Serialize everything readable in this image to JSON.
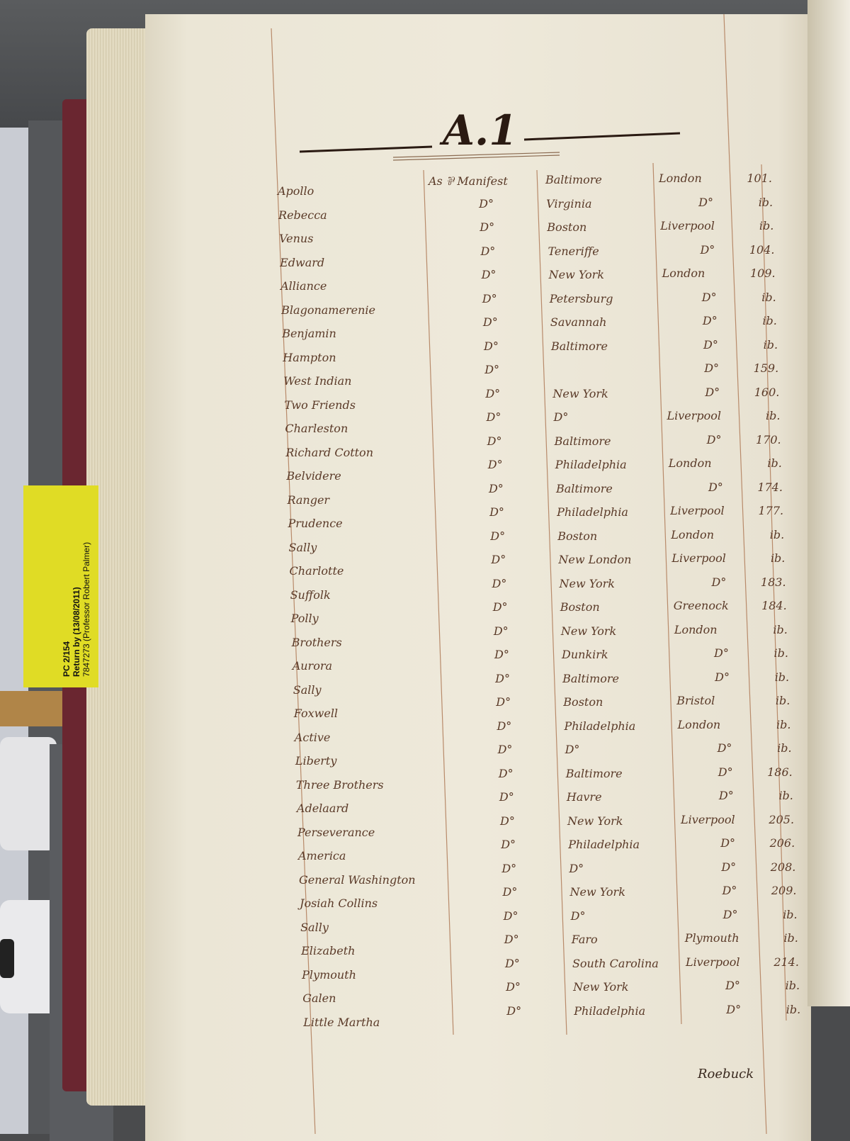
{
  "archive_label": {
    "reference": "PC 2/154",
    "return_by": "Return by (13/08/2011)",
    "reader": "7847273 (Professor Robert Palmer)"
  },
  "ledger": {
    "heading": "A.1",
    "ditto": "D°",
    "rows": [
      {
        "ship": "Apollo",
        "basis": "As ⅌ Manifest",
        "from": "Baltimore",
        "to": "London",
        "page": "101."
      },
      {
        "ship": "Rebecca",
        "basis": "D°",
        "from": "Virginia",
        "to": "D°",
        "page": "ib."
      },
      {
        "ship": "Venus",
        "basis": "D°",
        "from": "Boston",
        "to": "Liverpool",
        "page": "ib."
      },
      {
        "ship": "Edward",
        "basis": "D°",
        "from": "Teneriffe",
        "to": "D°",
        "page": "104."
      },
      {
        "ship": "Alliance",
        "basis": "D°",
        "from": "New York",
        "to": "London",
        "page": "109."
      },
      {
        "ship": "Blagonamerenie",
        "basis": "D°",
        "from": "Petersburg",
        "to": "D°",
        "page": "ib."
      },
      {
        "ship": "Benjamin",
        "basis": "D°",
        "from": "Savannah",
        "to": "D°",
        "page": "ib."
      },
      {
        "ship": "Hampton",
        "basis": "D°",
        "from": "Baltimore",
        "to": "D°",
        "page": "ib."
      },
      {
        "ship": "West Indian",
        "basis": "D°",
        "from": "",
        "to": "D°",
        "page": "159."
      },
      {
        "ship": "Two Friends",
        "basis": "D°",
        "from": "New York",
        "to": "D°",
        "page": "160."
      },
      {
        "ship": "Charleston",
        "basis": "D°",
        "from": "D°",
        "to": "Liverpool",
        "page": "ib."
      },
      {
        "ship": "Richard Cotton",
        "basis": "D°",
        "from": "Baltimore",
        "to": "D°",
        "page": "170."
      },
      {
        "ship": "Belvidere",
        "basis": "D°",
        "from": "Philadelphia",
        "to": "London",
        "page": "ib."
      },
      {
        "ship": "Ranger",
        "basis": "D°",
        "from": "Baltimore",
        "to": "D°",
        "page": "174."
      },
      {
        "ship": "Prudence",
        "basis": "D°",
        "from": "Philadelphia",
        "to": "Liverpool",
        "page": "177."
      },
      {
        "ship": "Sally",
        "basis": "D°",
        "from": "Boston",
        "to": "London",
        "page": "ib."
      },
      {
        "ship": "Charlotte",
        "basis": "D°",
        "from": "New London",
        "to": "Liverpool",
        "page": "ib."
      },
      {
        "ship": "Suffolk",
        "basis": "D°",
        "from": "New York",
        "to": "D°",
        "page": "183."
      },
      {
        "ship": "Polly",
        "basis": "D°",
        "from": "Boston",
        "to": "Greenock",
        "page": "184."
      },
      {
        "ship": "Brothers",
        "basis": "D°",
        "from": "New York",
        "to": "London",
        "page": "ib."
      },
      {
        "ship": "Aurora",
        "basis": "D°",
        "from": "Dunkirk",
        "to": "D°",
        "page": "ib."
      },
      {
        "ship": "Sally",
        "basis": "D°",
        "from": "Baltimore",
        "to": "D°",
        "page": "ib."
      },
      {
        "ship": "Foxwell",
        "basis": "D°",
        "from": "Boston",
        "to": "Bristol",
        "page": "ib."
      },
      {
        "ship": "Active",
        "basis": "D°",
        "from": "Philadelphia",
        "to": "London",
        "page": "ib."
      },
      {
        "ship": "Liberty",
        "basis": "D°",
        "from": "D°",
        "to": "D°",
        "page": "ib."
      },
      {
        "ship": "Three Brothers",
        "basis": "D°",
        "from": "Baltimore",
        "to": "D°",
        "page": "186."
      },
      {
        "ship": "Adelaard",
        "basis": "D°",
        "from": "Havre",
        "to": "D°",
        "page": "ib."
      },
      {
        "ship": "Perseverance",
        "basis": "D°",
        "from": "New York",
        "to": "Liverpool",
        "page": "205."
      },
      {
        "ship": "America",
        "basis": "D°",
        "from": "Philadelphia",
        "to": "D°",
        "page": "206."
      },
      {
        "ship": "General Washington",
        "basis": "D°",
        "from": "D°",
        "to": "D°",
        "page": "208."
      },
      {
        "ship": "Josiah Collins",
        "basis": "D°",
        "from": "New York",
        "to": "D°",
        "page": "209."
      },
      {
        "ship": "Sally",
        "basis": "D°",
        "from": "D°",
        "to": "D°",
        "page": "ib."
      },
      {
        "ship": "Elizabeth",
        "basis": "D°",
        "from": "Faro",
        "to": "Plymouth",
        "page": "ib."
      },
      {
        "ship": "Plymouth",
        "basis": "D°",
        "from": "South Carolina",
        "to": "Liverpool",
        "page": "214."
      },
      {
        "ship": "Galen",
        "basis": "D°",
        "from": "New York",
        "to": "D°",
        "page": "ib."
      },
      {
        "ship": "Little Martha",
        "basis": "D°",
        "from": "Philadelphia",
        "to": "D°",
        "page": "ib."
      }
    ],
    "catchword": "Roebuck"
  },
  "colors": {
    "ink": "#5a3a28",
    "paper": "#eee9da",
    "label": "#e0dc25",
    "cover": "#6a2630"
  }
}
